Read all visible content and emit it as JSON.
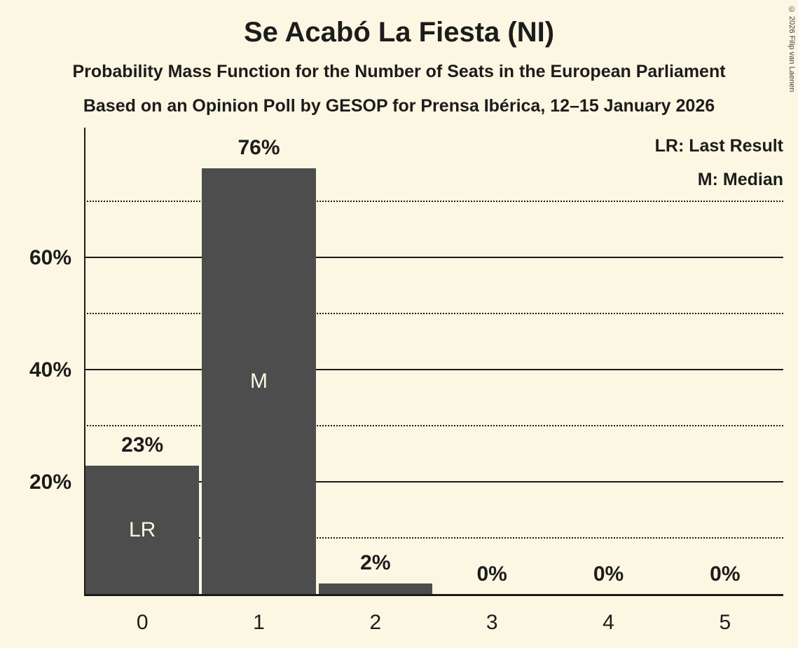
{
  "title": "Se Acabó La Fiesta (NI)",
  "subtitles": {
    "line1": "Probability Mass Function for the Number of Seats in the European Parliament",
    "line2": "Based on an Opinion Poll by GESOP for Prensa Ibérica, 12–15 January 2026"
  },
  "copyright": "© 2026 Filip van Laenen",
  "legend": {
    "last_result": "LR: Last Result",
    "median": "M: Median"
  },
  "colors": {
    "background": "#FCF7E2",
    "bar": "#4D4D4D",
    "text": "#1C1C1C",
    "bar_annotation": "#FCF7E2"
  },
  "chart_data": {
    "type": "bar",
    "title": "Se Acabó La Fiesta (NI)",
    "categories": [
      "0",
      "1",
      "2",
      "3",
      "4",
      "5"
    ],
    "values": [
      23,
      76,
      2,
      0,
      0,
      0
    ],
    "value_labels": [
      "23%",
      "76%",
      "2%",
      "0%",
      "0%",
      "0%"
    ],
    "bar_annotations": [
      "LR",
      "M",
      "",
      "",
      "",
      ""
    ],
    "xlabel": "",
    "ylabel": "",
    "ylim": [
      0,
      83.25
    ],
    "y_ticks": [
      {
        "value": 20,
        "label": "20%"
      },
      {
        "value": 40,
        "label": "40%"
      },
      {
        "value": 60,
        "label": "60%"
      }
    ],
    "solid_gridlines": [
      20,
      40,
      60
    ],
    "dotted_gridlines": [
      10,
      30,
      50,
      70
    ],
    "grid": true,
    "legend_position": "top-right"
  }
}
